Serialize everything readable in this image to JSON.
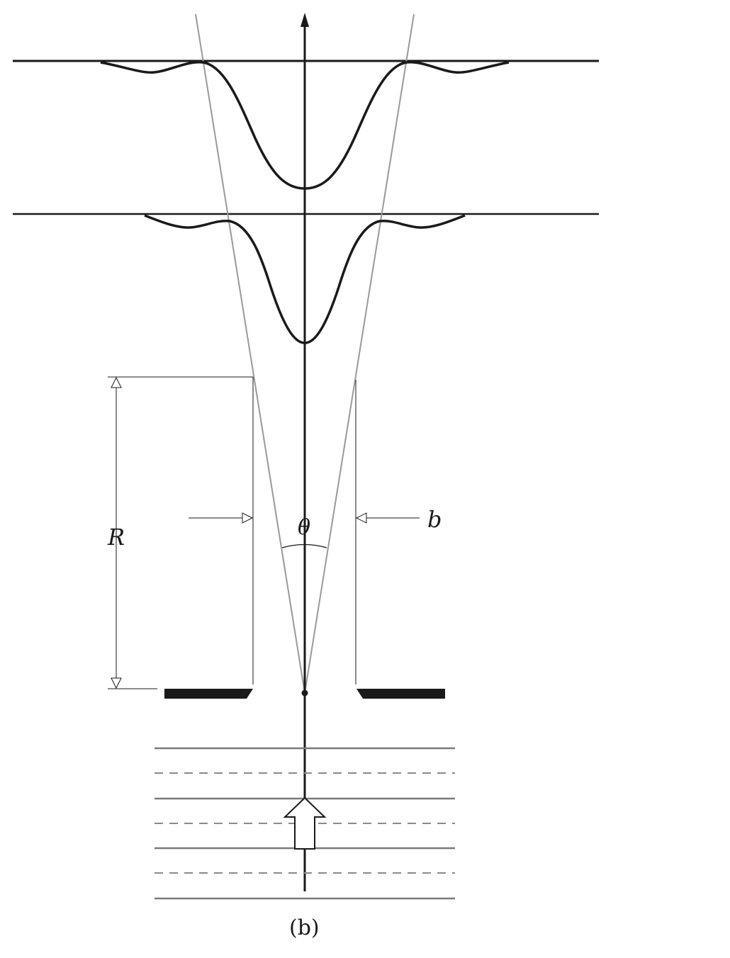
{
  "labels": {
    "distance": "R",
    "angle": "θ",
    "slit_width": "b",
    "caption": "(b)"
  },
  "colors": {
    "ink": "#1a1a1a",
    "guide": "#999999",
    "wavefront": "#7a7a7a"
  }
}
